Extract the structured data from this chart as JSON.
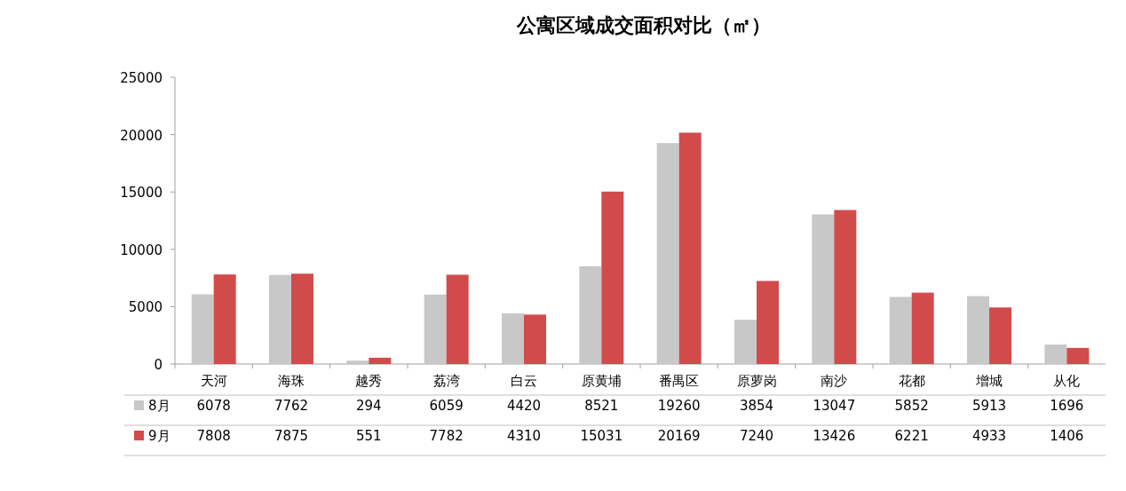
{
  "chart_data": {
    "type": "bar",
    "title": "公寓区域成交面积对比（㎡）",
    "categories": [
      "天河",
      "海珠",
      "越秀",
      "荔湾",
      "白云",
      "原黄埔",
      "番禺区",
      "原萝岗",
      "南沙",
      "花都",
      "增城",
      "从化"
    ],
    "series": [
      {
        "name": "8月",
        "color": "#c8c8c8",
        "values": [
          6078,
          7762,
          294,
          6059,
          4420,
          8521,
          19260,
          3854,
          13047,
          5852,
          5913,
          1696
        ]
      },
      {
        "name": "9月",
        "color": "#d24b4b",
        "values": [
          7808,
          7875,
          551,
          7782,
          4310,
          15031,
          20169,
          7240,
          13426,
          6221,
          4933,
          1406
        ]
      }
    ],
    "ylim": [
      0,
      25000
    ],
    "yticks": [
      0,
      5000,
      10000,
      15000,
      20000,
      25000
    ],
    "grid": false,
    "data_labels": true,
    "legend": "bottom"
  }
}
